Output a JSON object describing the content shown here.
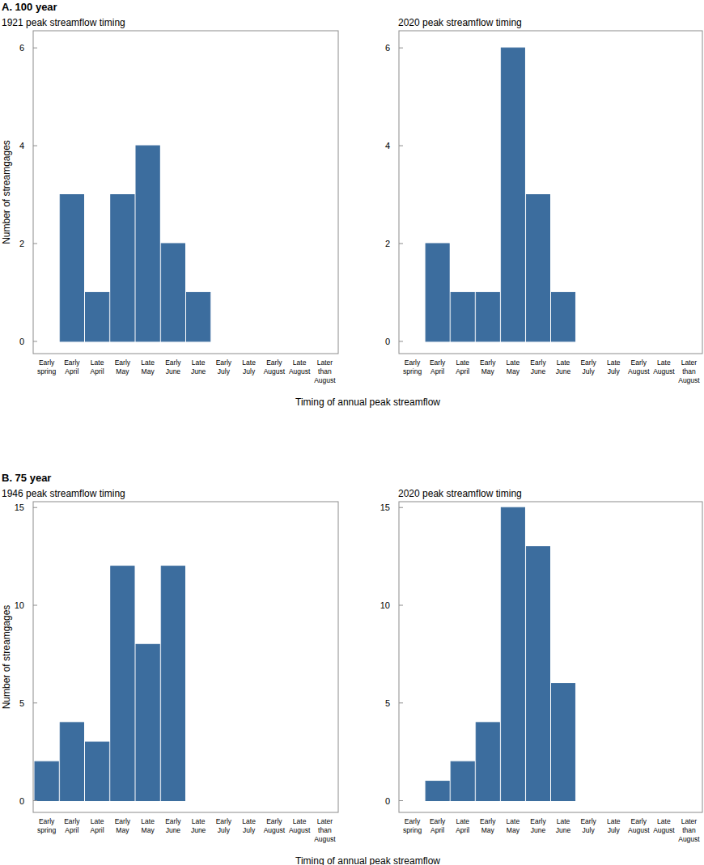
{
  "chart_data": [
    {
      "type": "bar",
      "annotations": [
        "A. 100 year"
      ],
      "title": "1921 peak streamflow timing",
      "y_label": "Number of streamgages",
      "x_label": "Timing of annual peak streamflow",
      "categories": [
        "Early spring",
        "Early April",
        "Late April",
        "Early May",
        "Late May",
        "Early June",
        "Late June",
        "Early July",
        "Late July",
        "Early August",
        "Late August",
        "Later than August"
      ],
      "values": [
        0,
        3,
        1,
        3,
        4,
        2,
        1,
        0,
        0,
        0,
        0,
        0
      ],
      "color": "#3c6d9e",
      "ylim": [
        -0.25,
        6.35
      ],
      "yticks": [
        0,
        2,
        4,
        6
      ],
      "grid": false
    },
    {
      "type": "bar",
      "title": "2020 peak streamflow timing",
      "categories": [
        "Early spring",
        "Early April",
        "Late April",
        "Early May",
        "Late May",
        "Early June",
        "Late June",
        "Early July",
        "Late July",
        "Early August",
        "Late August",
        "Later than August"
      ],
      "values": [
        0,
        2,
        1,
        1,
        6,
        3,
        1,
        0,
        0,
        0,
        0,
        0
      ],
      "color": "#3c6d9e",
      "ylim": [
        -0.25,
        6.35
      ],
      "yticks": [
        0,
        2,
        4,
        6
      ],
      "grid": false
    },
    {
      "type": "bar",
      "annotations": [
        "B. 75 year"
      ],
      "title": "1946 peak streamflow timing",
      "y_label": "Number of streamgages",
      "x_label": "Timing of annual peak streamflow",
      "categories": [
        "Early spring",
        "Early April",
        "Late April",
        "Early May",
        "Late May",
        "Early June",
        "Late June",
        "Early July",
        "Late July",
        "Early August",
        "Late August",
        "Later than August"
      ],
      "values": [
        2,
        4,
        3,
        12,
        8,
        12,
        0,
        0,
        0,
        0,
        0,
        0
      ],
      "color": "#3c6d9e",
      "ylim": [
        -0.6,
        15.3
      ],
      "yticks": [
        0,
        5,
        10,
        15
      ],
      "grid": false
    },
    {
      "type": "bar",
      "title": "2020 peak streamflow timing",
      "categories": [
        "Early spring",
        "Early April",
        "Late April",
        "Early May",
        "Late May",
        "Early June",
        "Late June",
        "Early July",
        "Late July",
        "Early August",
        "Late August",
        "Later than August"
      ],
      "values": [
        0,
        1,
        2,
        4,
        15,
        13,
        6,
        0,
        0,
        0,
        0,
        0
      ],
      "color": "#3c6d9e",
      "ylim": [
        -0.6,
        15.3
      ],
      "yticks": [
        0,
        5,
        10,
        15
      ],
      "grid": false
    }
  ]
}
